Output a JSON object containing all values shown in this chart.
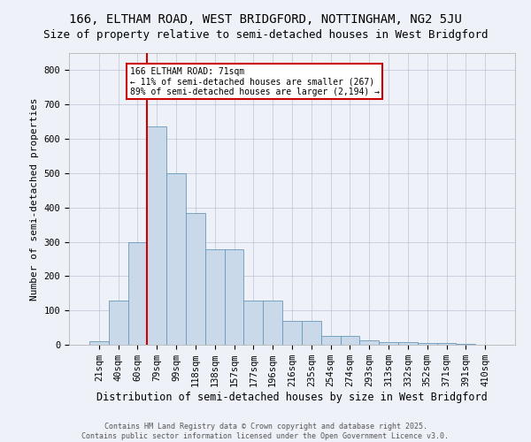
{
  "title1": "166, ELTHAM ROAD, WEST BRIDGFORD, NOTTINGHAM, NG2 5JU",
  "title2": "Size of property relative to semi-detached houses in West Bridgford",
  "xlabel": "Distribution of semi-detached houses by size in West Bridgford",
  "ylabel": "Number of semi-detached properties",
  "footer1": "Contains HM Land Registry data © Crown copyright and database right 2025.",
  "footer2": "Contains public sector information licensed under the Open Government Licence v3.0.",
  "bin_labels": [
    "21sqm",
    "40sqm",
    "60sqm",
    "79sqm",
    "99sqm",
    "118sqm",
    "138sqm",
    "157sqm",
    "177sqm",
    "196sqm",
    "216sqm",
    "235sqm",
    "254sqm",
    "274sqm",
    "293sqm",
    "313sqm",
    "332sqm",
    "352sqm",
    "371sqm",
    "391sqm",
    "410sqm"
  ],
  "bar_values": [
    10,
    128,
    300,
    635,
    500,
    383,
    277,
    277,
    130,
    130,
    70,
    70,
    25,
    25,
    12,
    7,
    7,
    5,
    5,
    3,
    0
  ],
  "bar_color": "#c9d9ea",
  "bar_edge_color": "#6699bb",
  "vline_color": "#cc0000",
  "vline_x_index": 2.5,
  "annotation_text": "166 ELTHAM ROAD: 71sqm\n← 11% of semi-detached houses are smaller (267)\n89% of semi-detached houses are larger (2,194) →",
  "annotation_box_facecolor": "#ffffff",
  "annotation_box_edgecolor": "#cc0000",
  "ylim": [
    0,
    850
  ],
  "yticks": [
    0,
    100,
    200,
    300,
    400,
    500,
    600,
    700,
    800
  ],
  "background_color": "#eef2f8",
  "plot_background": "#eef2f8",
  "grid_color": "#b0b8cc",
  "title_fontsize": 10,
  "axis_fontsize": 7.5,
  "ylabel_fontsize": 8,
  "xlabel_fontsize": 8.5,
  "footer_fontsize": 6,
  "annot_fontsize": 7
}
